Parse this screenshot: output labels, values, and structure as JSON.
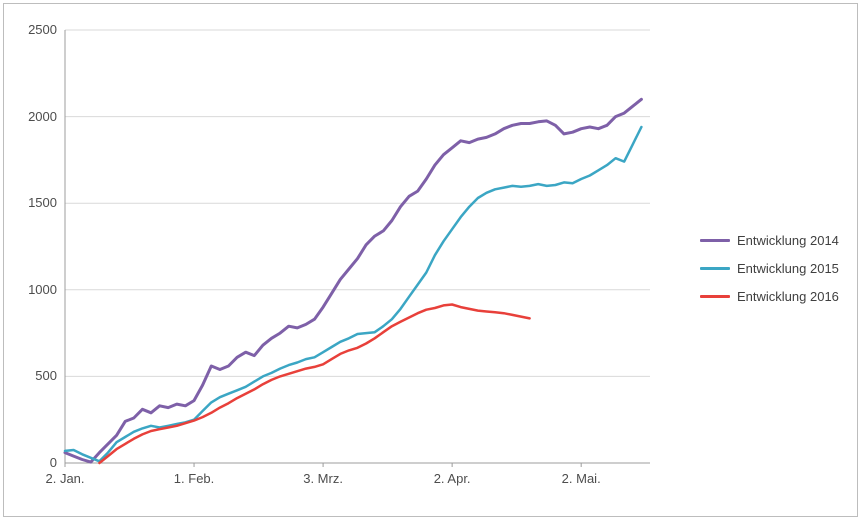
{
  "chart_data": {
    "type": "line",
    "title": "",
    "grid": "horizontal",
    "legend_position": "right",
    "x_axis": {
      "tick_days": [
        2,
        32,
        62,
        92,
        122
      ],
      "tick_labels": [
        "2. Jan.",
        "1. Feb.",
        "3. Mrz.",
        "2. Apr.",
        "2. Mai."
      ],
      "range_days": [
        2,
        138
      ]
    },
    "y_axis": {
      "ticks": [
        0,
        500,
        1000,
        1500,
        2000,
        2500
      ],
      "range": [
        0,
        2500
      ]
    },
    "colors": {
      "gridline": "#d9d9d9",
      "axis_line": "#9c9c9c",
      "tick_text": "#4d4d4d"
    },
    "series": [
      {
        "name": "Entwicklung 2014",
        "color": "#7e60a8",
        "x": [
          2,
          4,
          6,
          8,
          10,
          12,
          14,
          16,
          18,
          20,
          22,
          24,
          26,
          28,
          30,
          32,
          34,
          36,
          38,
          40,
          42,
          44,
          46,
          48,
          50,
          52,
          54,
          56,
          58,
          60,
          62,
          64,
          66,
          68,
          70,
          72,
          74,
          76,
          78,
          80,
          82,
          84,
          86,
          88,
          90,
          92,
          94,
          96,
          98,
          100,
          102,
          104,
          106,
          108,
          110,
          112,
          114,
          116,
          118,
          120,
          122,
          124,
          126,
          128,
          130,
          132,
          134,
          136
        ],
        "values": [
          60,
          40,
          20,
          5,
          60,
          110,
          160,
          240,
          260,
          310,
          290,
          330,
          320,
          340,
          330,
          360,
          450,
          560,
          540,
          560,
          610,
          640,
          620,
          680,
          720,
          750,
          790,
          780,
          800,
          830,
          900,
          980,
          1060,
          1120,
          1180,
          1260,
          1310,
          1340,
          1400,
          1480,
          1540,
          1570,
          1640,
          1720,
          1780,
          1820,
          1860,
          1850,
          1870,
          1880,
          1900,
          1930,
          1950,
          1960,
          1960,
          1970,
          1975,
          1950,
          1900,
          1910,
          1930,
          1940,
          1930,
          1950,
          2000,
          2020,
          2060,
          2100
        ]
      },
      {
        "name": "Entwicklung 2015",
        "color": "#3ba6c4",
        "x": [
          2,
          4,
          6,
          8,
          10,
          12,
          14,
          16,
          18,
          20,
          22,
          24,
          26,
          28,
          30,
          32,
          34,
          36,
          38,
          40,
          42,
          44,
          46,
          48,
          50,
          52,
          54,
          56,
          58,
          60,
          62,
          64,
          66,
          68,
          70,
          72,
          74,
          76,
          78,
          80,
          82,
          84,
          86,
          88,
          90,
          92,
          94,
          96,
          98,
          100,
          102,
          104,
          106,
          108,
          110,
          112,
          114,
          116,
          118,
          120,
          122,
          124,
          126,
          128,
          130,
          132,
          134,
          136
        ],
        "values": [
          70,
          75,
          50,
          30,
          10,
          60,
          120,
          150,
          180,
          200,
          215,
          205,
          215,
          225,
          235,
          250,
          300,
          350,
          380,
          400,
          420,
          440,
          470,
          500,
          520,
          545,
          565,
          580,
          600,
          610,
          640,
          670,
          700,
          720,
          745,
          750,
          755,
          790,
          830,
          890,
          960,
          1030,
          1100,
          1200,
          1280,
          1350,
          1420,
          1480,
          1530,
          1560,
          1580,
          1590,
          1600,
          1595,
          1600,
          1610,
          1600,
          1605,
          1620,
          1615,
          1640,
          1660,
          1690,
          1720,
          1760,
          1740,
          1840,
          1940
        ]
      },
      {
        "name": "Entwicklung 2016",
        "color": "#e8403a",
        "x": [
          10,
          12,
          14,
          16,
          18,
          20,
          22,
          24,
          26,
          28,
          30,
          32,
          34,
          36,
          38,
          40,
          42,
          44,
          46,
          48,
          50,
          52,
          54,
          56,
          58,
          60,
          62,
          64,
          66,
          68,
          70,
          72,
          74,
          76,
          78,
          80,
          82,
          84,
          86,
          88,
          90,
          92,
          94,
          96,
          98,
          100,
          102,
          104,
          106,
          108,
          110
        ],
        "values": [
          0,
          40,
          80,
          110,
          140,
          165,
          185,
          195,
          205,
          215,
          230,
          245,
          265,
          290,
          320,
          345,
          375,
          400,
          425,
          455,
          480,
          500,
          515,
          530,
          545,
          555,
          570,
          600,
          630,
          650,
          665,
          690,
          720,
          755,
          790,
          815,
          840,
          865,
          885,
          895,
          910,
          915,
          900,
          890,
          880,
          875,
          870,
          865,
          855,
          845,
          835
        ]
      }
    ]
  },
  "legend": {
    "items": [
      {
        "label": "Entwicklung 2014"
      },
      {
        "label": "Entwicklung 2015"
      },
      {
        "label": "Entwicklung 2016"
      }
    ]
  }
}
